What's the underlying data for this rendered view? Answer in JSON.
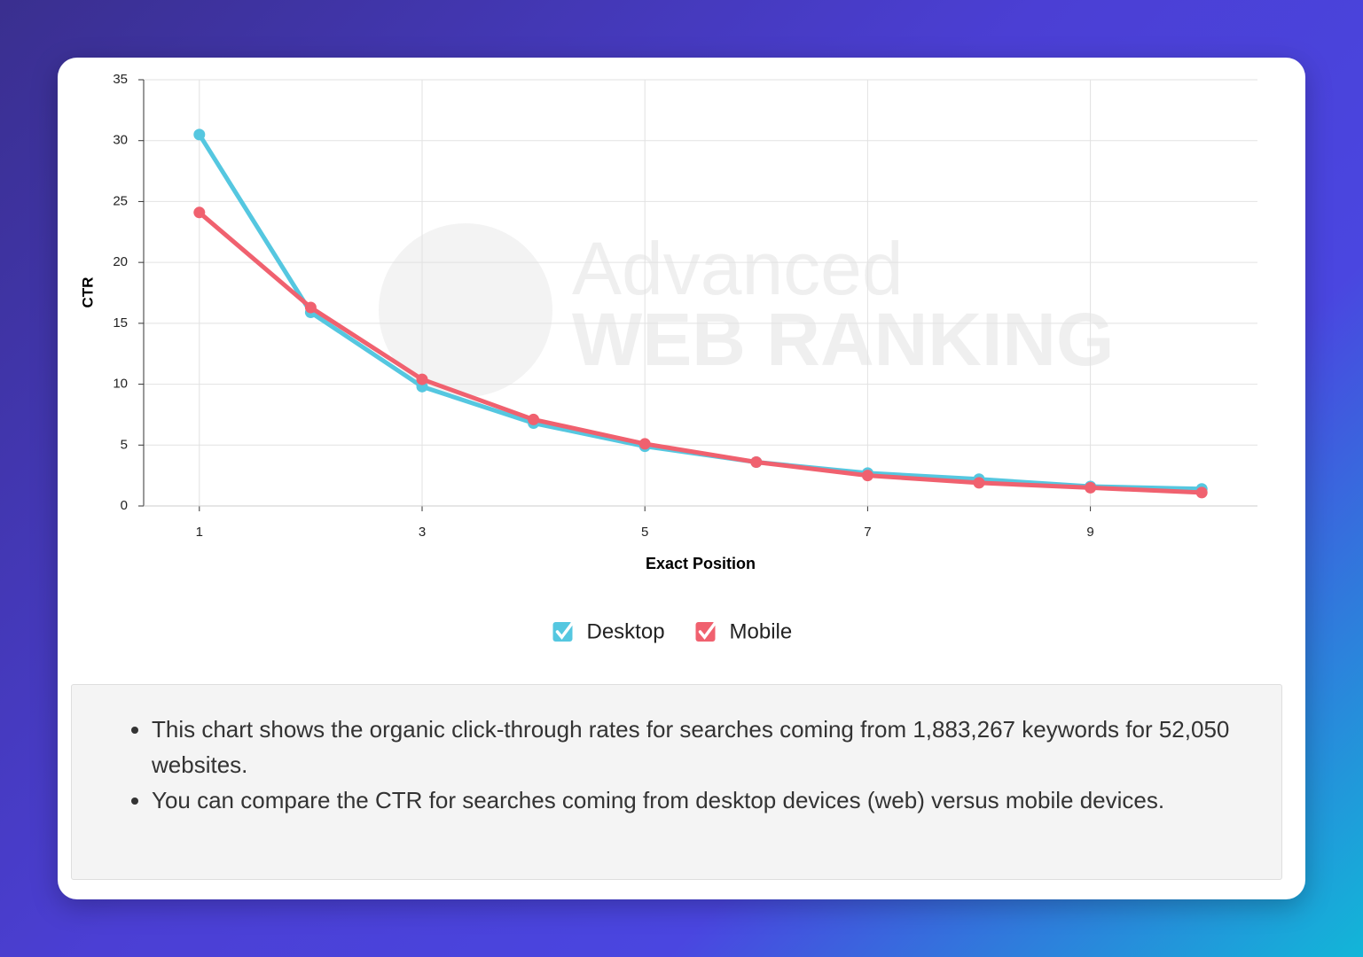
{
  "chart_data": {
    "type": "line",
    "x_label": "Exact Position",
    "y_label": "CTR",
    "x": [
      1,
      2,
      3,
      4,
      5,
      6,
      7,
      8,
      9,
      10
    ],
    "series": [
      {
        "name": "Desktop",
        "color": "#55c7e0",
        "values": [
          30.5,
          15.9,
          9.8,
          6.8,
          4.9,
          3.6,
          2.7,
          2.2,
          1.6,
          1.4
        ]
      },
      {
        "name": "Mobile",
        "color": "#f0616f",
        "values": [
          24.1,
          16.3,
          10.4,
          7.1,
          5.1,
          3.6,
          2.5,
          1.9,
          1.5,
          1.1
        ]
      }
    ],
    "xlim": [
      0.5,
      10.5
    ],
    "xticks": [
      1,
      3,
      5,
      7,
      9
    ],
    "ylim": [
      0,
      35
    ],
    "yticks": [
      0,
      5,
      10,
      15,
      20,
      25,
      30,
      35
    ],
    "grid": true,
    "legend": "bottom"
  },
  "watermark": [
    "Advanced",
    "WEB RANKING"
  ],
  "notes": [
    "This chart shows the organic click-through rates for searches coming from 1,883,267 keywords for 52,050 websites.",
    "You can compare the CTR for searches coming from desktop devices (web) versus mobile devices."
  ]
}
